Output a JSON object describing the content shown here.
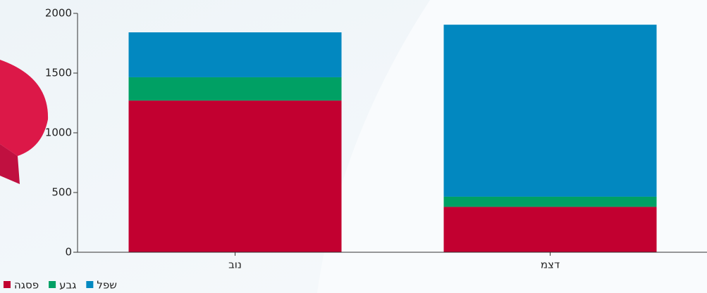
{
  "chart_data": {
    "type": "stacked_bar",
    "categories": [
      "נוב",
      "דצמ"
    ],
    "series": [
      {
        "name": "פסגה",
        "color": "#c20030",
        "values": [
          1270,
          380
        ]
      },
      {
        "name": "גבע",
        "color": "#00a064",
        "values": [
          195,
          85
        ]
      },
      {
        "name": "שפל",
        "color": "#0288c0",
        "values": [
          376,
          1440
        ]
      }
    ],
    "ylim": [
      0,
      2000
    ],
    "yticks": [
      0,
      500,
      1000,
      1500,
      2000
    ]
  }
}
